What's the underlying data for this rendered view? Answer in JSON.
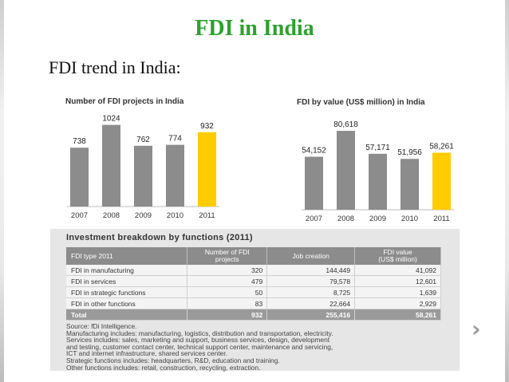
{
  "slide": {
    "title": "FDI in India",
    "subtitle": "FDI trend in India:"
  },
  "colors": {
    "title": "#2ea12e",
    "bar": "#8c8c8c",
    "highlight": "#ffcc00"
  },
  "chart_data": [
    {
      "type": "bar",
      "title": "Number of FDI projects in India",
      "categories": [
        "2007",
        "2008",
        "2009",
        "2010",
        "2011"
      ],
      "values": [
        738,
        1024,
        762,
        774,
        932
      ],
      "labels": [
        "738",
        "1024",
        "762",
        "774",
        "932"
      ],
      "highlight_index": 4,
      "xlabel": "",
      "ylabel": "",
      "ylim": [
        0,
        1100
      ]
    },
    {
      "type": "bar",
      "title": "FDI by value (US$ million) in India",
      "categories": [
        "2007",
        "2008",
        "2009",
        "2010",
        "2011"
      ],
      "values": [
        54152,
        80618,
        57171,
        51956,
        58261
      ],
      "labels": [
        "54,152",
        "80,618",
        "57,171",
        "51,956",
        "58,261"
      ],
      "highlight_index": 4,
      "xlabel": "",
      "ylabel": "",
      "ylim": [
        0,
        88000
      ]
    },
    {
      "type": "table",
      "title": "Investment breakdown by functions (2011)",
      "columns": [
        "FDI type 2011",
        "Number of FDI projects",
        "Job creation",
        "FDI value (US$ million)"
      ],
      "rows": [
        [
          "FDI in manufacturing",
          "320",
          "144,449",
          "41,092"
        ],
        [
          "FDI in services",
          "479",
          "79,578",
          "12,601"
        ],
        [
          "FDI in strategic functions",
          "50",
          "8,725",
          "1,639"
        ],
        [
          "FDI in other functions",
          "83",
          "22,664",
          "2,929"
        ]
      ],
      "total": [
        "Total",
        "932",
        "255,416",
        "58,261"
      ]
    }
  ],
  "table": {
    "title": "Investment breakdown by functions (2011)",
    "header": {
      "type": "FDI type 2011",
      "projects_1": "Number of FDI",
      "projects_2": "projects",
      "jobs": "Job creation",
      "value_1": "FDI value",
      "value_2": "(US$ million)"
    },
    "rows": [
      {
        "type": "FDI in manufacturing",
        "projects": "320",
        "jobs": "144,449",
        "value": "41,092"
      },
      {
        "type": "FDI in services",
        "projects": "479",
        "jobs": "79,578",
        "value": "12,601"
      },
      {
        "type": "FDI in strategic functions",
        "projects": "50",
        "jobs": "8,725",
        "value": "1,639"
      },
      {
        "type": "FDI in other functions",
        "projects": "83",
        "jobs": "22,664",
        "value": "2,929"
      }
    ],
    "total": {
      "type": "Total",
      "projects": "932",
      "jobs": "255,416",
      "value": "58,261"
    },
    "notes": [
      "Source: fDi Intelligence.",
      "Manufacturing includes: manufacturing, logistics, distribution and transportation, electricity.",
      "Services includes: sales, marketing and support, business services, design, development",
      "and testing, customer contact center, technical support center, maintenance and servicing,",
      "ICT and internet infrastructure, shared services center.",
      "Strategic functions includes: headquarters, R&D, education and training.",
      "Other functions includes: retail, construction, recycling, extraction."
    ]
  },
  "navigation": {
    "next_icon": "chevron-right-icon",
    "next_glyph": "›"
  }
}
